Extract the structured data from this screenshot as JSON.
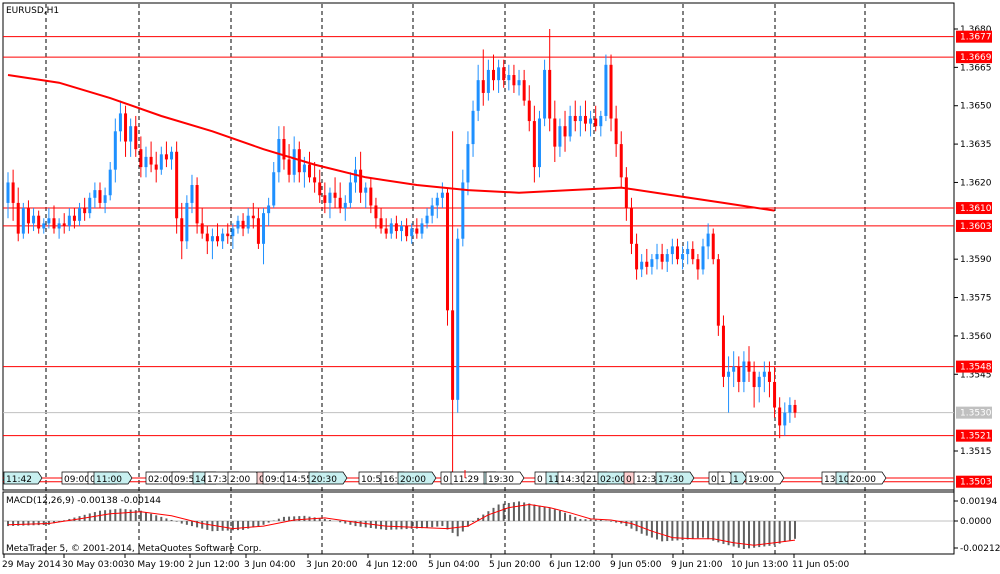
{
  "chart_title": "EURUSD,H1",
  "macd_label": "MACD(12,26,9) -0.00138 -0.00144",
  "copyright": "MetaTrader 5, © 2001-2014, MetaQuotes Software Corp.",
  "colors": {
    "bull": "#1e90ff",
    "bear": "#ff0000",
    "ma": "#ff0000",
    "hline": "#ff0000",
    "grid": "#000000",
    "badge_red": "#ff0000",
    "current": "#c0c0c0"
  },
  "price_axis": {
    "labels": [
      {
        "v": 1.368,
        "t": "1.3680"
      },
      {
        "v": 1.3665,
        "t": "1.3665"
      },
      {
        "v": 1.365,
        "t": "1.3650"
      },
      {
        "v": 1.3635,
        "t": "1.3635"
      },
      {
        "v": 1.362,
        "t": "1.3620"
      },
      {
        "v": 1.359,
        "t": "1.3590"
      },
      {
        "v": 1.3575,
        "t": "1.3575"
      },
      {
        "v": 1.356,
        "t": "1.3560"
      },
      {
        "v": 1.3545,
        "t": "1.3545"
      },
      {
        "v": 1.3515,
        "t": "1.3515"
      }
    ]
  },
  "price_levels": [
    {
      "v": 1.3677,
      "t": "1.3677"
    },
    {
      "v": 1.3669,
      "t": "1.3669"
    },
    {
      "v": 1.361,
      "t": "1.3610"
    },
    {
      "v": 1.3603,
      "t": "1.3603"
    },
    {
      "v": 1.3548,
      "t": "1.3548"
    },
    {
      "v": 1.3521,
      "t": "1.3521"
    },
    {
      "v": 1.3503,
      "t": "1.3503"
    }
  ],
  "current_price": {
    "v": 1.353,
    "t": "1.3530"
  },
  "macd_axis": [
    {
      "v": 0.00194,
      "t": "0.00194"
    },
    {
      "v": 0.0,
      "t": "0.0000"
    },
    {
      "v": -0.00212,
      "t": "-0.00212"
    }
  ],
  "time_labels": [
    "29 May 2014",
    "30 May 03:00",
    "30 May 19:00",
    "2 Jun 12:00",
    "3 Jun 04:00",
    "3 Jun 20:00",
    "4 Jun 12:00",
    "5 Jun 04:00",
    "5 Jun 20:00",
    "6 Jun 12:00",
    "9 Jun 05:00",
    "9 Jun 21:00",
    "10 Jun 13:00",
    "11 Jun 05:00"
  ],
  "event_tags": [
    "11:42",
    "09:00",
    "03:3",
    "11:00",
    "02:00",
    "09:5",
    "14:",
    "17:30",
    "2:00",
    "0",
    "09:00",
    "14:55",
    "20:30",
    "10:50",
    "16:",
    "20:00",
    "0",
    "11:29",
    "2",
    "19:30",
    "0",
    "11",
    "14:30",
    "21:",
    "02:00",
    "0",
    "12:3",
    "17:30",
    "0",
    "1",
    "1",
    "19:00",
    "13",
    "10",
    "20:00"
  ],
  "chart_data": {
    "type": "candlestick",
    "title": "EURUSD,H1",
    "ylim": [
      1.3503,
      1.3687
    ],
    "candles": [
      [
        1.3612,
        1.3624,
        1.3606,
        1.362
      ],
      [
        1.362,
        1.3625,
        1.3605,
        1.3612
      ],
      [
        1.3612,
        1.3618,
        1.3597,
        1.36
      ],
      [
        1.36,
        1.3612,
        1.3598,
        1.361
      ],
      [
        1.361,
        1.3613,
        1.36,
        1.3604
      ],
      [
        1.3604,
        1.361,
        1.3601,
        1.3607
      ],
      [
        1.3607,
        1.3609,
        1.36,
        1.3602
      ],
      [
        1.3602,
        1.3606,
        1.36,
        1.3604
      ],
      [
        1.3604,
        1.361,
        1.3602,
        1.3606
      ],
      [
        1.3606,
        1.3611,
        1.36,
        1.3602
      ],
      [
        1.3602,
        1.3606,
        1.3598,
        1.3604
      ],
      [
        1.3604,
        1.3608,
        1.36,
        1.3603
      ],
      [
        1.3603,
        1.361,
        1.3601,
        1.3607
      ],
      [
        1.3607,
        1.361,
        1.3602,
        1.3605
      ],
      [
        1.3605,
        1.3612,
        1.3603,
        1.361
      ],
      [
        1.361,
        1.3614,
        1.3605,
        1.3608
      ],
      [
        1.3608,
        1.3616,
        1.3606,
        1.3614
      ],
      [
        1.3614,
        1.362,
        1.361,
        1.3617
      ],
      [
        1.3617,
        1.362,
        1.361,
        1.3612
      ],
      [
        1.3612,
        1.3618,
        1.3608,
        1.3615
      ],
      [
        1.3615,
        1.3628,
        1.3613,
        1.3625
      ],
      [
        1.3625,
        1.3645,
        1.362,
        1.364
      ],
      [
        1.364,
        1.3652,
        1.3636,
        1.3647
      ],
      [
        1.3647,
        1.365,
        1.363,
        1.3636
      ],
      [
        1.3636,
        1.3645,
        1.363,
        1.3642
      ],
      [
        1.3642,
        1.3646,
        1.363,
        1.3633
      ],
      [
        1.3633,
        1.3638,
        1.3622,
        1.3626
      ],
      [
        1.3626,
        1.3634,
        1.3622,
        1.363
      ],
      [
        1.363,
        1.3636,
        1.3624,
        1.3627
      ],
      [
        1.3627,
        1.3632,
        1.362,
        1.3625
      ],
      [
        1.3625,
        1.3634,
        1.3623,
        1.3631
      ],
      [
        1.3631,
        1.3636,
        1.3626,
        1.3629
      ],
      [
        1.3629,
        1.3634,
        1.3625,
        1.3632
      ],
      [
        1.3632,
        1.3636,
        1.36,
        1.3606
      ],
      [
        1.3606,
        1.3612,
        1.359,
        1.3597
      ],
      [
        1.3597,
        1.3615,
        1.3594,
        1.3612
      ],
      [
        1.3612,
        1.3623,
        1.3608,
        1.3619
      ],
      [
        1.3619,
        1.3622,
        1.36,
        1.3604
      ],
      [
        1.3604,
        1.361,
        1.3598,
        1.36
      ],
      [
        1.36,
        1.3603,
        1.3592,
        1.3597
      ],
      [
        1.3597,
        1.3602,
        1.359,
        1.3599
      ],
      [
        1.3599,
        1.3604,
        1.3595,
        1.3597
      ],
      [
        1.3597,
        1.3602,
        1.3594,
        1.36
      ],
      [
        1.36,
        1.3604,
        1.3596,
        1.3599
      ],
      [
        1.3599,
        1.3604,
        1.3594,
        1.3602
      ],
      [
        1.3602,
        1.3607,
        1.36,
        1.3605
      ],
      [
        1.3605,
        1.3608,
        1.3599,
        1.3602
      ],
      [
        1.3602,
        1.361,
        1.36,
        1.3607
      ],
      [
        1.3607,
        1.3612,
        1.3602,
        1.3606
      ],
      [
        1.3606,
        1.361,
        1.3594,
        1.3596
      ],
      [
        1.3596,
        1.361,
        1.3588,
        1.3608
      ],
      [
        1.3608,
        1.3614,
        1.3603,
        1.3611
      ],
      [
        1.3611,
        1.3628,
        1.361,
        1.3624
      ],
      [
        1.3624,
        1.3642,
        1.362,
        1.3637
      ],
      [
        1.3637,
        1.3642,
        1.3625,
        1.3629
      ],
      [
        1.3629,
        1.3635,
        1.362,
        1.3623
      ],
      [
        1.3623,
        1.3638,
        1.362,
        1.3633
      ],
      [
        1.3633,
        1.3636,
        1.362,
        1.3624
      ],
      [
        1.3624,
        1.363,
        1.3618,
        1.3627
      ],
      [
        1.3627,
        1.3632,
        1.362,
        1.3622
      ],
      [
        1.3622,
        1.3628,
        1.3616,
        1.362
      ],
      [
        1.362,
        1.3625,
        1.3612,
        1.3615
      ],
      [
        1.3615,
        1.362,
        1.3608,
        1.3612
      ],
      [
        1.3612,
        1.3618,
        1.3606,
        1.3616
      ],
      [
        1.3616,
        1.3622,
        1.361,
        1.3614
      ],
      [
        1.3614,
        1.362,
        1.3608,
        1.361
      ],
      [
        1.361,
        1.3615,
        1.3605,
        1.3612
      ],
      [
        1.3612,
        1.3624,
        1.361,
        1.362
      ],
      [
        1.362,
        1.363,
        1.3616,
        1.3625
      ],
      [
        1.3625,
        1.3632,
        1.3612,
        1.3616
      ],
      [
        1.3616,
        1.362,
        1.361,
        1.3618
      ],
      [
        1.3618,
        1.3622,
        1.3608,
        1.3611
      ],
      [
        1.3611,
        1.3614,
        1.3602,
        1.3606
      ],
      [
        1.3606,
        1.361,
        1.36,
        1.3602
      ],
      [
        1.3602,
        1.3606,
        1.3598,
        1.36
      ],
      [
        1.36,
        1.3606,
        1.3598,
        1.3604
      ],
      [
        1.3604,
        1.3607,
        1.3598,
        1.3601
      ],
      [
        1.3601,
        1.3605,
        1.3597,
        1.3603
      ],
      [
        1.3603,
        1.3606,
        1.3597,
        1.3599
      ],
      [
        1.3599,
        1.3604,
        1.3596,
        1.3602
      ],
      [
        1.3602,
        1.3606,
        1.3598,
        1.36
      ],
      [
        1.36,
        1.3606,
        1.3598,
        1.3604
      ],
      [
        1.3604,
        1.361,
        1.3602,
        1.3607
      ],
      [
        1.3607,
        1.3614,
        1.3604,
        1.3611
      ],
      [
        1.3611,
        1.3616,
        1.3606,
        1.3614
      ],
      [
        1.3614,
        1.362,
        1.361,
        1.3616
      ],
      [
        1.3616,
        1.3618,
        1.3564,
        1.357
      ],
      [
        1.357,
        1.364,
        1.3504,
        1.3535
      ],
      [
        1.3535,
        1.3602,
        1.353,
        1.3598
      ],
      [
        1.3598,
        1.3625,
        1.3595,
        1.362
      ],
      [
        1.362,
        1.364,
        1.3615,
        1.3635
      ],
      [
        1.3635,
        1.3652,
        1.363,
        1.3648
      ],
      [
        1.3648,
        1.3666,
        1.3644,
        1.366
      ],
      [
        1.366,
        1.3672,
        1.365,
        1.3655
      ],
      [
        1.3655,
        1.3668,
        1.3652,
        1.3664
      ],
      [
        1.3664,
        1.367,
        1.3656,
        1.366
      ],
      [
        1.366,
        1.3668,
        1.3655,
        1.3665
      ],
      [
        1.3665,
        1.3668,
        1.3657,
        1.366
      ],
      [
        1.366,
        1.3666,
        1.3656,
        1.3662
      ],
      [
        1.3662,
        1.3666,
        1.3655,
        1.3658
      ],
      [
        1.3658,
        1.3664,
        1.3654,
        1.366
      ],
      [
        1.366,
        1.3664,
        1.365,
        1.3652
      ],
      [
        1.3652,
        1.3658,
        1.364,
        1.3644
      ],
      [
        1.3644,
        1.365,
        1.362,
        1.3626
      ],
      [
        1.3626,
        1.3648,
        1.3622,
        1.3645
      ],
      [
        1.3645,
        1.3668,
        1.3642,
        1.3664
      ],
      [
        1.3664,
        1.368,
        1.364,
        1.3645
      ],
      [
        1.3645,
        1.3652,
        1.3628,
        1.3634
      ],
      [
        1.3634,
        1.3645,
        1.363,
        1.3642
      ],
      [
        1.3642,
        1.3648,
        1.3632,
        1.3638
      ],
      [
        1.3638,
        1.365,
        1.3636,
        1.3646
      ],
      [
        1.3646,
        1.3652,
        1.364,
        1.3644
      ],
      [
        1.3644,
        1.365,
        1.3638,
        1.3646
      ],
      [
        1.3646,
        1.3652,
        1.364,
        1.3643
      ],
      [
        1.3643,
        1.3648,
        1.3638,
        1.3645
      ],
      [
        1.3645,
        1.365,
        1.364,
        1.3642
      ],
      [
        1.3642,
        1.3648,
        1.3638,
        1.3646
      ],
      [
        1.3646,
        1.367,
        1.3644,
        1.3666
      ],
      [
        1.3666,
        1.367,
        1.364,
        1.3645
      ],
      [
        1.3645,
        1.365,
        1.363,
        1.3635
      ],
      [
        1.3635,
        1.364,
        1.3618,
        1.3622
      ],
      [
        1.3622,
        1.3626,
        1.3605,
        1.361
      ],
      [
        1.361,
        1.3614,
        1.3592,
        1.3596
      ],
      [
        1.3596,
        1.36,
        1.3582,
        1.3586
      ],
      [
        1.3586,
        1.3592,
        1.3583,
        1.3589
      ],
      [
        1.3589,
        1.3594,
        1.3584,
        1.3587
      ],
      [
        1.3587,
        1.3592,
        1.3584,
        1.359
      ],
      [
        1.359,
        1.3596,
        1.3586,
        1.3592
      ],
      [
        1.3592,
        1.3596,
        1.3586,
        1.3589
      ],
      [
        1.3589,
        1.3594,
        1.3585,
        1.3592
      ],
      [
        1.3592,
        1.3598,
        1.3588,
        1.3595
      ],
      [
        1.3595,
        1.3598,
        1.3588,
        1.359
      ],
      [
        1.359,
        1.3595,
        1.3586,
        1.3592
      ],
      [
        1.3592,
        1.3597,
        1.3588,
        1.3594
      ],
      [
        1.3594,
        1.3597,
        1.3588,
        1.359
      ],
      [
        1.359,
        1.3592,
        1.3582,
        1.3586
      ],
      [
        1.3586,
        1.3598,
        1.3584,
        1.3595
      ],
      [
        1.3595,
        1.3604,
        1.359,
        1.36
      ],
      [
        1.36,
        1.3602,
        1.3588,
        1.359
      ],
      [
        1.359,
        1.3592,
        1.356,
        1.3564
      ],
      [
        1.3564,
        1.3568,
        1.354,
        1.3544
      ],
      [
        1.3544,
        1.3552,
        1.353,
        1.3546
      ],
      [
        1.3546,
        1.3554,
        1.354,
        1.3548
      ],
      [
        1.3548,
        1.3552,
        1.3538,
        1.3542
      ],
      [
        1.3542,
        1.3554,
        1.3538,
        1.355
      ],
      [
        1.355,
        1.3556,
        1.3542,
        1.3546
      ],
      [
        1.3546,
        1.355,
        1.3532,
        1.354
      ],
      [
        1.354,
        1.3546,
        1.3534,
        1.3544
      ],
      [
        1.3544,
        1.355,
        1.3538,
        1.3546
      ],
      [
        1.3546,
        1.355,
        1.3536,
        1.3542
      ],
      [
        1.3542,
        1.3548,
        1.3528,
        1.3532
      ],
      [
        1.3532,
        1.3536,
        1.352,
        1.3525
      ],
      [
        1.3525,
        1.3534,
        1.3521,
        1.353
      ],
      [
        1.353,
        1.3536,
        1.3526,
        1.3533
      ],
      [
        1.3533,
        1.3535,
        1.3528,
        1.353
      ]
    ],
    "ma_points": [
      [
        0,
        1.3662
      ],
      [
        10,
        1.3659
      ],
      [
        20,
        1.3653
      ],
      [
        30,
        1.3646
      ],
      [
        40,
        1.364
      ],
      [
        50,
        1.3633
      ],
      [
        60,
        1.3627
      ],
      [
        70,
        1.3622
      ],
      [
        80,
        1.3619
      ],
      [
        90,
        1.3617
      ],
      [
        100,
        1.3616
      ],
      [
        110,
        1.3617
      ],
      [
        120,
        1.3618
      ],
      [
        130,
        1.3615
      ],
      [
        140,
        1.3612
      ],
      [
        150,
        1.3609
      ]
    ],
    "macd_hist": [
      [
        0,
        -0.0004
      ],
      [
        8,
        -0.0003
      ],
      [
        12,
        0.0002
      ],
      [
        18,
        0.001
      ],
      [
        22,
        0.0012
      ],
      [
        26,
        0.001
      ],
      [
        30,
        0.0004
      ],
      [
        34,
        -0.0002
      ],
      [
        40,
        -0.0008
      ],
      [
        46,
        -0.0007
      ],
      [
        50,
        -0.0003
      ],
      [
        54,
        0.0004
      ],
      [
        58,
        0.0005
      ],
      [
        62,
        0.0002
      ],
      [
        68,
        -0.0004
      ],
      [
        74,
        -0.0007
      ],
      [
        80,
        -0.0006
      ],
      [
        85,
        -0.0004
      ],
      [
        88,
        -0.0012
      ],
      [
        92,
        0.0003
      ],
      [
        96,
        0.0016
      ],
      [
        100,
        0.0019
      ],
      [
        104,
        0.0015
      ],
      [
        108,
        0.001
      ],
      [
        112,
        0.0002
      ],
      [
        116,
        0.0001
      ],
      [
        120,
        -0.0002
      ],
      [
        124,
        -0.001
      ],
      [
        128,
        -0.0016
      ],
      [
        132,
        -0.0015
      ],
      [
        136,
        -0.0013
      ],
      [
        140,
        -0.0018
      ],
      [
        144,
        -0.0022
      ],
      [
        150,
        -0.0019
      ],
      [
        154,
        -0.0014
      ]
    ],
    "macd_signal": [
      [
        0,
        -0.0003
      ],
      [
        8,
        -0.0002
      ],
      [
        14,
        0.0002
      ],
      [
        20,
        0.0007
      ],
      [
        26,
        0.0009
      ],
      [
        32,
        0.0005
      ],
      [
        38,
        -0.0002
      ],
      [
        44,
        -0.0006
      ],
      [
        50,
        -0.0004
      ],
      [
        56,
        0.0001
      ],
      [
        62,
        0.0003
      ],
      [
        68,
        -0.0001
      ],
      [
        74,
        -0.0004
      ],
      [
        80,
        -0.0005
      ],
      [
        86,
        -0.0006
      ],
      [
        90,
        -0.0004
      ],
      [
        94,
        0.0006
      ],
      [
        98,
        0.0013
      ],
      [
        102,
        0.0016
      ],
      [
        106,
        0.0013
      ],
      [
        110,
        0.0008
      ],
      [
        114,
        0.0002
      ],
      [
        118,
        0.0001
      ],
      [
        122,
        -0.0002
      ],
      [
        126,
        -0.0008
      ],
      [
        130,
        -0.0013
      ],
      [
        134,
        -0.0014
      ],
      [
        138,
        -0.0014
      ],
      [
        142,
        -0.0017
      ],
      [
        146,
        -0.0019
      ],
      [
        150,
        -0.0017
      ],
      [
        154,
        -0.0015
      ]
    ]
  }
}
